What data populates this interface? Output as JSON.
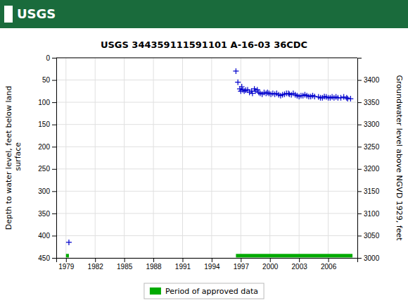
{
  "chart_data": {
    "type": "scatter",
    "title": "USGS 344359111591101 A-16-03 36CDC",
    "ylabel": "Depth to water level, feet below land\n surface",
    "y2label": "Groundwater level above NGVD 1929, feet",
    "xlim": [
      1978,
      2009
    ],
    "xticks": [
      1979,
      1982,
      1985,
      1988,
      1991,
      1994,
      1997,
      2000,
      2003,
      2006
    ],
    "ylim": [
      450,
      0
    ],
    "yticks": [
      0,
      50,
      100,
      150,
      200,
      250,
      300,
      350,
      400,
      450
    ],
    "y2lim": [
      3000,
      3450
    ],
    "y2ticks": [
      3000,
      3050,
      3100,
      3150,
      3200,
      3250,
      3300,
      3350,
      3400
    ],
    "grid": true,
    "legend": "bottom",
    "annotations": [
      {
        "text": "USGS",
        "color": "#1a6b3c"
      }
    ],
    "series": [
      {
        "type": "scatter",
        "color": "#0000cc",
        "marker": "plus",
        "x": [
          1979.3,
          1996.5,
          1996.7,
          1996.9,
          1997.0,
          1997.1,
          1997.2,
          1997.35,
          1997.5,
          1997.7,
          1997.9,
          1998.1,
          1998.2,
          1998.4,
          1998.5,
          1998.7,
          1998.85,
          1999.0,
          1999.2,
          1999.4,
          1999.6,
          1999.75,
          1999.9,
          2000.1,
          2000.3,
          2000.5,
          2000.7,
          2000.9,
          2001.1,
          2001.3,
          2001.5,
          2001.7,
          2001.9,
          2002.0,
          2002.2,
          2002.4,
          2002.6,
          2002.8,
          2003.0,
          2003.2,
          2003.4,
          2003.6,
          2003.8,
          2004.0,
          2004.2,
          2004.4,
          2004.6,
          2005.0,
          2005.2,
          2005.4,
          2005.6,
          2005.8,
          2006.0,
          2006.2,
          2006.4,
          2006.6,
          2006.8,
          2007.0,
          2007.3,
          2007.6,
          2007.9,
          2008.0,
          2008.3
        ],
        "values": [
          415,
          30,
          55,
          70,
          75,
          65,
          72,
          75,
          73,
          72,
          78,
          75,
          80,
          70,
          75,
          72,
          78,
          80,
          82,
          78,
          80,
          78,
          80,
          82,
          80,
          82,
          80,
          83,
          85,
          83,
          82,
          80,
          80,
          82,
          83,
          80,
          83,
          85,
          87,
          85,
          85,
          83,
          85,
          87,
          87,
          85,
          87,
          88,
          90,
          90,
          87,
          88,
          90,
          90,
          88,
          90,
          88,
          90,
          90,
          88,
          90,
          92,
          92
        ]
      },
      {
        "type": "bar",
        "orientation": "horizontal",
        "name": "Period of approved data",
        "color": "#00aa00",
        "y": 445,
        "height": 8,
        "starts": [
          1996.5,
          1979.0
        ],
        "ends": [
          2008.5,
          1979.3
        ]
      }
    ]
  }
}
